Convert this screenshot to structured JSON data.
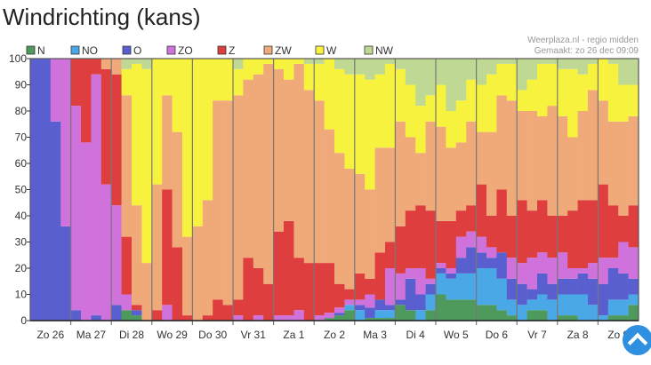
{
  "page": {
    "title": "Windrichting (kans)",
    "credit_line1": "Weerplaza.nl - regio midden",
    "credit_line2": "Gemaakt: zo 26 dec 09:09"
  },
  "chart_data": {
    "type": "bar",
    "stacked": true,
    "title": "Windrichting (kans)",
    "ylabel": "",
    "xlabel": "",
    "ylim": [
      0,
      100
    ],
    "yticks": [
      "0",
      "10",
      "20",
      "30",
      "40",
      "50",
      "60",
      "70",
      "80",
      "90",
      "100"
    ],
    "legend_position": "top-left",
    "series_names": [
      "N",
      "NO",
      "O",
      "ZO",
      "Z",
      "ZW",
      "W",
      "NW"
    ],
    "colors": [
      "#4e9a5c",
      "#4aa8e6",
      "#5a5fcf",
      "#cf72dc",
      "#de3e3e",
      "#f0aa7a",
      "#f7f23e",
      "#bfd994"
    ],
    "categories": [
      "Zo 26",
      "Ma 27",
      "Di 28",
      "Wo 29",
      "Do 30",
      "Vr 31",
      "Za 1",
      "Zo 2",
      "Ma 3",
      "Di 4",
      "Wo 5",
      "Do 6",
      "Vr 7",
      "Za 8",
      "Zo 9"
    ],
    "bars_per_day": 4,
    "bars": [
      [
        0,
        0,
        100,
        0,
        0,
        0,
        0,
        0
      ],
      [
        0,
        0,
        100,
        0,
        0,
        0,
        0,
        0
      ],
      [
        0,
        0,
        76,
        24,
        0,
        0,
        0,
        0
      ],
      [
        0,
        0,
        36,
        64,
        0,
        0,
        0,
        0
      ],
      [
        0,
        0,
        4,
        78,
        18,
        0,
        0,
        0
      ],
      [
        0,
        0,
        0,
        68,
        32,
        0,
        0,
        0
      ],
      [
        0,
        0,
        2,
        92,
        6,
        0,
        0,
        0
      ],
      [
        0,
        0,
        0,
        52,
        44,
        4,
        0,
        0
      ],
      [
        0,
        0,
        6,
        38,
        50,
        6,
        0,
        0
      ],
      [
        4,
        0,
        0,
        6,
        22,
        54,
        10,
        4
      ],
      [
        2,
        0,
        2,
        0,
        2,
        38,
        54,
        2
      ],
      [
        0,
        0,
        0,
        0,
        0,
        22,
        74,
        4
      ],
      [
        0,
        0,
        0,
        0,
        4,
        48,
        48,
        0
      ],
      [
        0,
        0,
        0,
        6,
        44,
        36,
        14,
        0
      ],
      [
        0,
        0,
        0,
        0,
        28,
        44,
        28,
        0
      ],
      [
        0,
        0,
        0,
        0,
        2,
        30,
        68,
        0
      ],
      [
        0,
        0,
        0,
        0,
        0,
        36,
        64,
        0
      ],
      [
        0,
        0,
        0,
        0,
        2,
        44,
        54,
        0
      ],
      [
        0,
        0,
        0,
        0,
        8,
        76,
        16,
        0
      ],
      [
        0,
        0,
        0,
        0,
        6,
        78,
        16,
        0
      ],
      [
        0,
        0,
        0,
        2,
        6,
        78,
        10,
        4
      ],
      [
        0,
        0,
        0,
        0,
        24,
        68,
        8,
        0
      ],
      [
        0,
        0,
        0,
        2,
        18,
        74,
        6,
        0
      ],
      [
        0,
        0,
        0,
        0,
        14,
        84,
        2,
        0
      ],
      [
        0,
        0,
        0,
        2,
        32,
        62,
        4,
        0
      ],
      [
        0,
        0,
        0,
        2,
        36,
        54,
        8,
        0
      ],
      [
        0,
        0,
        0,
        4,
        20,
        74,
        2,
        0
      ],
      [
        0,
        0,
        0,
        0,
        22,
        66,
        10,
        2
      ],
      [
        0,
        0,
        0,
        2,
        20,
        62,
        14,
        2
      ],
      [
        1,
        0,
        0,
        2,
        19,
        51,
        27,
        0
      ],
      [
        2,
        0,
        1,
        2,
        9,
        50,
        32,
        4
      ],
      [
        4,
        2,
        0,
        2,
        4,
        46,
        36,
        6
      ],
      [
        0,
        4,
        2,
        2,
        10,
        38,
        38,
        6
      ],
      [
        1,
        0,
        4,
        5,
        6,
        34,
        42,
        8
      ],
      [
        1,
        3,
        4,
        0,
        18,
        40,
        28,
        6
      ],
      [
        1,
        3,
        2,
        14,
        10,
        36,
        32,
        2
      ],
      [
        6,
        0,
        2,
        10,
        18,
        40,
        20,
        4
      ],
      [
        4,
        0,
        12,
        4,
        22,
        28,
        20,
        10
      ],
      [
        0,
        4,
        6,
        10,
        24,
        20,
        18,
        18
      ],
      [
        4,
        6,
        4,
        2,
        26,
        34,
        10,
        14
      ],
      [
        10,
        8,
        2,
        2,
        16,
        36,
        16,
        10
      ],
      [
        8,
        8,
        2,
        2,
        18,
        28,
        14,
        20
      ],
      [
        8,
        10,
        6,
        8,
        10,
        26,
        16,
        16
      ],
      [
        8,
        10,
        10,
        6,
        10,
        32,
        16,
        8
      ],
      [
        6,
        14,
        6,
        6,
        20,
        20,
        18,
        10
      ],
      [
        6,
        14,
        4,
        4,
        12,
        32,
        22,
        6
      ],
      [
        4,
        12,
        10,
        0,
        24,
        36,
        12,
        2
      ],
      [
        2,
        6,
        8,
        8,
        16,
        44,
        14,
        2
      ],
      [
        0,
        6,
        8,
        8,
        24,
        34,
        8,
        12
      ],
      [
        4,
        4,
        4,
        12,
        18,
        38,
        12,
        8
      ],
      [
        4,
        6,
        8,
        8,
        20,
        32,
        20,
        2
      ],
      [
        0,
        8,
        6,
        10,
        16,
        42,
        16,
        2
      ],
      [
        2,
        8,
        6,
        10,
        14,
        38,
        18,
        4
      ],
      [
        2,
        8,
        6,
        4,
        22,
        28,
        26,
        4
      ],
      [
        0,
        10,
        8,
        2,
        26,
        34,
        14,
        6
      ],
      [
        0,
        6,
        10,
        6,
        24,
        42,
        10,
        2
      ],
      [
        0,
        2,
        12,
        10,
        28,
        32,
        16,
        0
      ],
      [
        2,
        6,
        12,
        4,
        20,
        32,
        22,
        2
      ],
      [
        2,
        6,
        10,
        12,
        10,
        36,
        14,
        10
      ],
      [
        6,
        4,
        6,
        12,
        16,
        34,
        12,
        10
      ]
    ]
  },
  "scroll_up": {
    "icon": "chevron-up-icon"
  }
}
